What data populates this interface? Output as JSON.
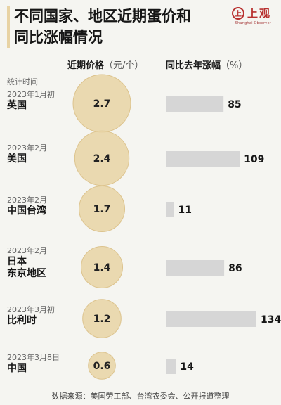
{
  "title_lines": [
    "不同国家、地区近期蛋价和",
    "同比涨幅情况"
  ],
  "logo": {
    "text": "上观",
    "mark": "上",
    "subtext": "Shanghai Observer"
  },
  "columns": {
    "price": {
      "label": "近期价格",
      "unit": "（元/个）"
    },
    "change": {
      "label": "同比去年涨幅",
      "unit": "（%）"
    }
  },
  "note": "统计时间",
  "colors": {
    "bubble": "#e8d3a4",
    "bubble_stroke": "#dcc38d",
    "bar": "#d6d6d6",
    "background": "#f5f5f1"
  },
  "chart_data": {
    "type": "bubble-bar",
    "categories": [
      "英国",
      "美国",
      "中国台湾",
      "日本\n东京地区",
      "比利时",
      "中国"
    ],
    "dates": [
      "2023年1月初",
      "2023年2月",
      "2023年2月",
      "2023年2月",
      "2023年3月初",
      "2023年3月8日"
    ],
    "series": [
      {
        "values": [
          2.7,
          2.4,
          1.7,
          1.4,
          1.2,
          0.6
        ]
      },
      {
        "values": [
          85,
          109,
          11,
          86,
          134,
          14
        ]
      }
    ]
  },
  "footer": "数据来源：美国劳工部、台湾农委会、公开报道整理"
}
